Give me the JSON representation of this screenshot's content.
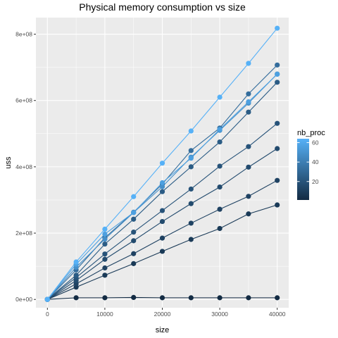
{
  "chart_data": {
    "type": "line",
    "title": "Physical memory consumption vs size",
    "xlabel": "size",
    "ylabel": "uss",
    "xlim": [
      -2000,
      42000
    ],
    "ylim": [
      -25000000,
      850000000
    ],
    "x_ticks": [
      0,
      10000,
      20000,
      30000,
      40000
    ],
    "x_tick_labels": [
      "0",
      "10000",
      "20000",
      "30000",
      "40000"
    ],
    "y_ticks": [
      0,
      200000000,
      400000000,
      600000000,
      800000000
    ],
    "y_tick_labels": [
      "0e+00",
      "2e+08",
      "4e+08",
      "6e+08",
      "8e+08"
    ],
    "grid": true,
    "x": [
      0,
      5000,
      10000,
      15000,
      20000,
      25000,
      30000,
      35000,
      40000
    ],
    "legend": {
      "title": "nb_proc",
      "position": "right",
      "type": "colorbar",
      "range": [
        1,
        64
      ],
      "ticks": [
        20,
        40,
        60
      ],
      "tick_labels": [
        "20",
        "40",
        "60"
      ],
      "low_color": "#132B43",
      "high_color": "#56B1F7"
    },
    "series": [
      {
        "nb_proc": 1,
        "values": [
          0,
          5000000,
          5000000,
          6000000,
          5000000,
          5000000,
          5000000,
          5000000,
          5000000
        ]
      },
      {
        "nb_proc": 8,
        "values": [
          0,
          37000000,
          73000000,
          108000000,
          145000000,
          181000000,
          214000000,
          258000000,
          285000000
        ]
      },
      {
        "nb_proc": 12,
        "values": [
          0,
          47000000,
          95000000,
          138000000,
          185000000,
          230000000,
          272000000,
          311000000,
          359000000
        ]
      },
      {
        "nb_proc": 16,
        "values": [
          0,
          57000000,
          121000000,
          177000000,
          235000000,
          289000000,
          339000000,
          399000000,
          455000000
        ]
      },
      {
        "nb_proc": 20,
        "values": [
          0,
          66000000,
          137000000,
          203000000,
          268000000,
          333000000,
          402000000,
          461000000,
          531000000
        ]
      },
      {
        "nb_proc": 24,
        "values": [
          0,
          73000000,
          167000000,
          242000000,
          325000000,
          400000000,
          475000000,
          565000000,
          655000000
        ]
      },
      {
        "nb_proc": 32,
        "values": [
          0,
          89000000,
          186000000,
          263000000,
          348000000,
          449000000,
          517000000,
          620000000,
          707000000
        ]
      },
      {
        "nb_proc": 48,
        "values": [
          0,
          97000000,
          182000000,
          262000000,
          340000000,
          429000000,
          510000000,
          592000000,
          680000000
        ]
      },
      {
        "nb_proc": 56,
        "values": [
          0,
          106000000,
          197000000,
          262000000,
          352000000,
          426000000,
          513000000,
          596000000,
          679000000
        ]
      },
      {
        "nb_proc": 64,
        "values": [
          0,
          113000000,
          212000000,
          310000000,
          411000000,
          508000000,
          610000000,
          712000000,
          818000000
        ]
      }
    ]
  }
}
